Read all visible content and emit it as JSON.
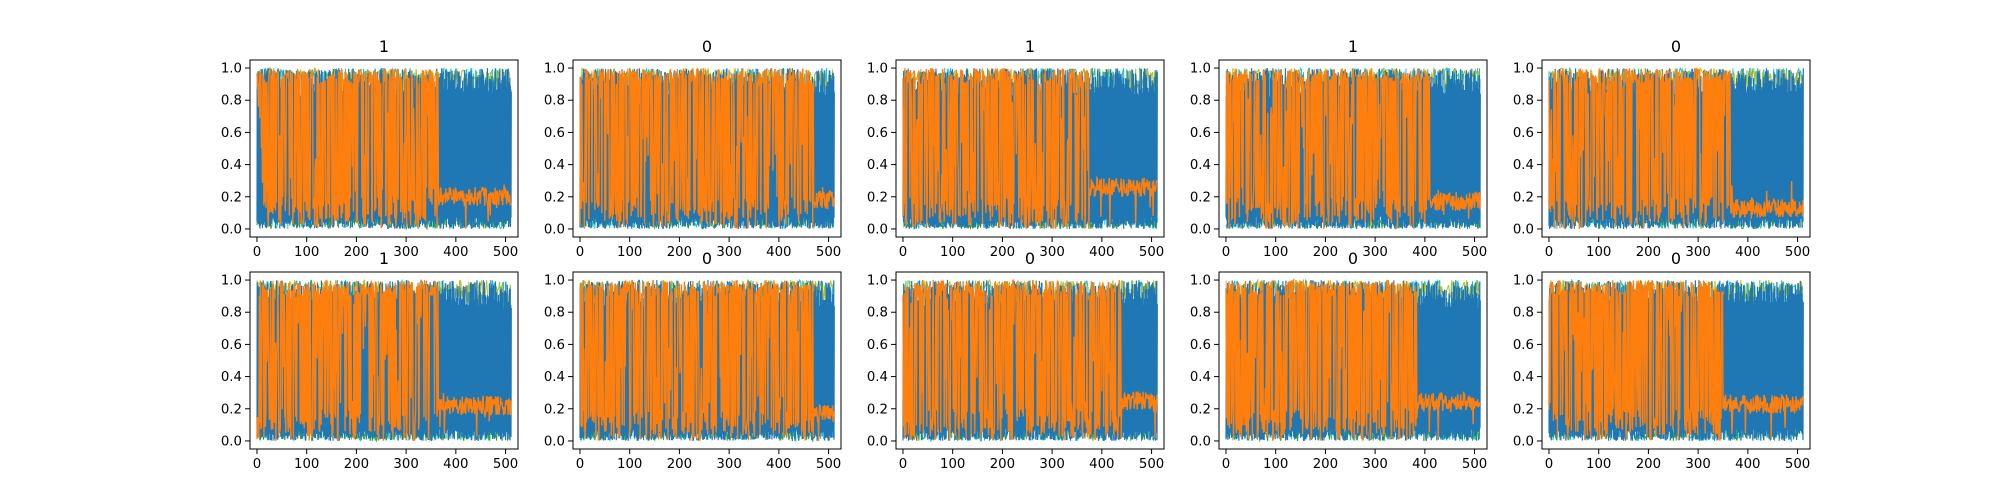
{
  "chart_data": {
    "type": "line",
    "layout": "grid 2 rows x 5 columns",
    "xlim": [
      -14,
      525
    ],
    "ylim": [
      -0.05,
      1.05
    ],
    "x_ticks": [
      0,
      100,
      200,
      300,
      400,
      500
    ],
    "y_ticks": [
      "0.0",
      "0.2",
      "0.4",
      "0.6",
      "0.8",
      "1.0"
    ],
    "grid": false,
    "legend": "none",
    "series_colors": [
      "#1f77b4",
      "#ff7f0e",
      "#17becf",
      "#bcbd22",
      "#2ca02c"
    ],
    "panels": [
      {
        "title": "1",
        "transition_x": 365,
        "base_level": 0.2
      },
      {
        "title": "0",
        "transition_x": 470,
        "base_level": 0.18
      },
      {
        "title": "1",
        "transition_x": 375,
        "base_level": 0.26
      },
      {
        "title": "1",
        "transition_x": 410,
        "base_level": 0.17
      },
      {
        "title": "0",
        "transition_x": 365,
        "base_level": 0.13
      },
      {
        "title": "1",
        "transition_x": 365,
        "base_level": 0.22
      },
      {
        "title": "0",
        "transition_x": 470,
        "base_level": 0.17
      },
      {
        "title": "0",
        "transition_x": 440,
        "base_level": 0.25
      },
      {
        "title": "0",
        "transition_x": 385,
        "base_level": 0.24
      },
      {
        "title": "0",
        "transition_x": 350,
        "base_level": 0.23
      }
    ]
  }
}
